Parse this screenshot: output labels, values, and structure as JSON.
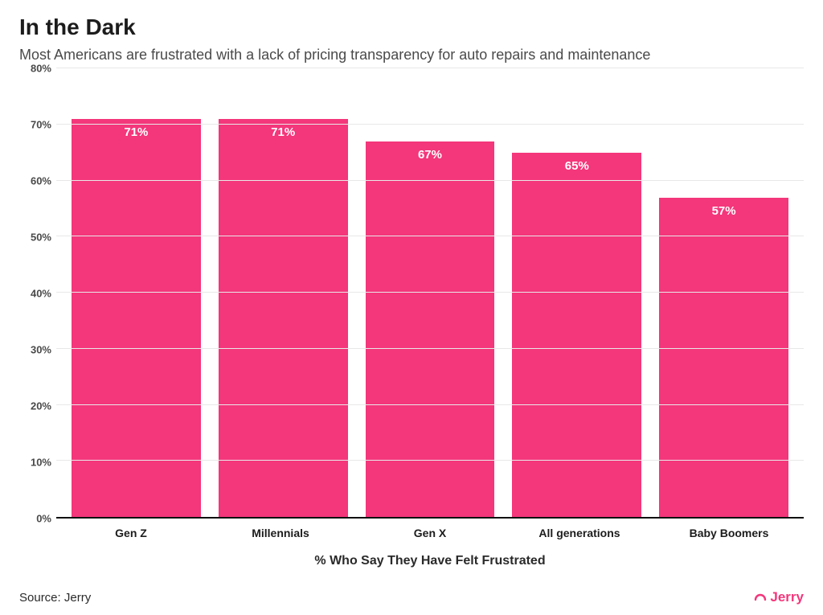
{
  "header": {
    "title": "In the Dark",
    "title_fontsize": 28,
    "title_color": "#1c1c1c",
    "subtitle": "Most Americans are frustrated with a lack of pricing transparency for auto repairs and maintenance",
    "subtitle_fontsize": 18,
    "subtitle_color": "#4a4a4a"
  },
  "chart": {
    "type": "bar",
    "categories": [
      "Gen Z",
      "Millennials",
      "Gen X",
      "All generations",
      "Baby Boomers"
    ],
    "values": [
      71,
      71,
      67,
      65,
      57
    ],
    "value_labels": [
      "71%",
      "71%",
      "67%",
      "65%",
      "57%"
    ],
    "bar_color": "#f4367a",
    "value_label_color": "#ffffff",
    "value_label_fontsize": 15,
    "value_label_fontweight": 700,
    "x_axis": {
      "title": "% Who Say They Have Felt Frustrated",
      "title_fontsize": 16,
      "title_fontweight": 700,
      "label_fontsize": 14,
      "label_fontweight": 700,
      "label_color": "#1c1c1c"
    },
    "y_axis": {
      "min": 0,
      "max": 80,
      "tick_step": 10,
      "ticks": [
        0,
        10,
        20,
        30,
        40,
        50,
        60,
        70,
        80
      ],
      "tick_labels": [
        "0%",
        "10%",
        "20%",
        "30%",
        "40%",
        "50%",
        "60%",
        "70%",
        "80%"
      ],
      "tick_fontsize": 13,
      "tick_fontweight": 600,
      "tick_color": "#4a4a4a"
    },
    "grid_color": "#e8e8e8",
    "axis_line_color": "#111111",
    "background_color": "#ffffff",
    "bar_width_ratio": 0.88
  },
  "footer": {
    "source": "Source: Jerry",
    "source_fontsize": 15,
    "source_color": "#2a2a2a",
    "brand_text": "Jerry",
    "brand_color": "#f4367a",
    "brand_fontsize": 17
  }
}
